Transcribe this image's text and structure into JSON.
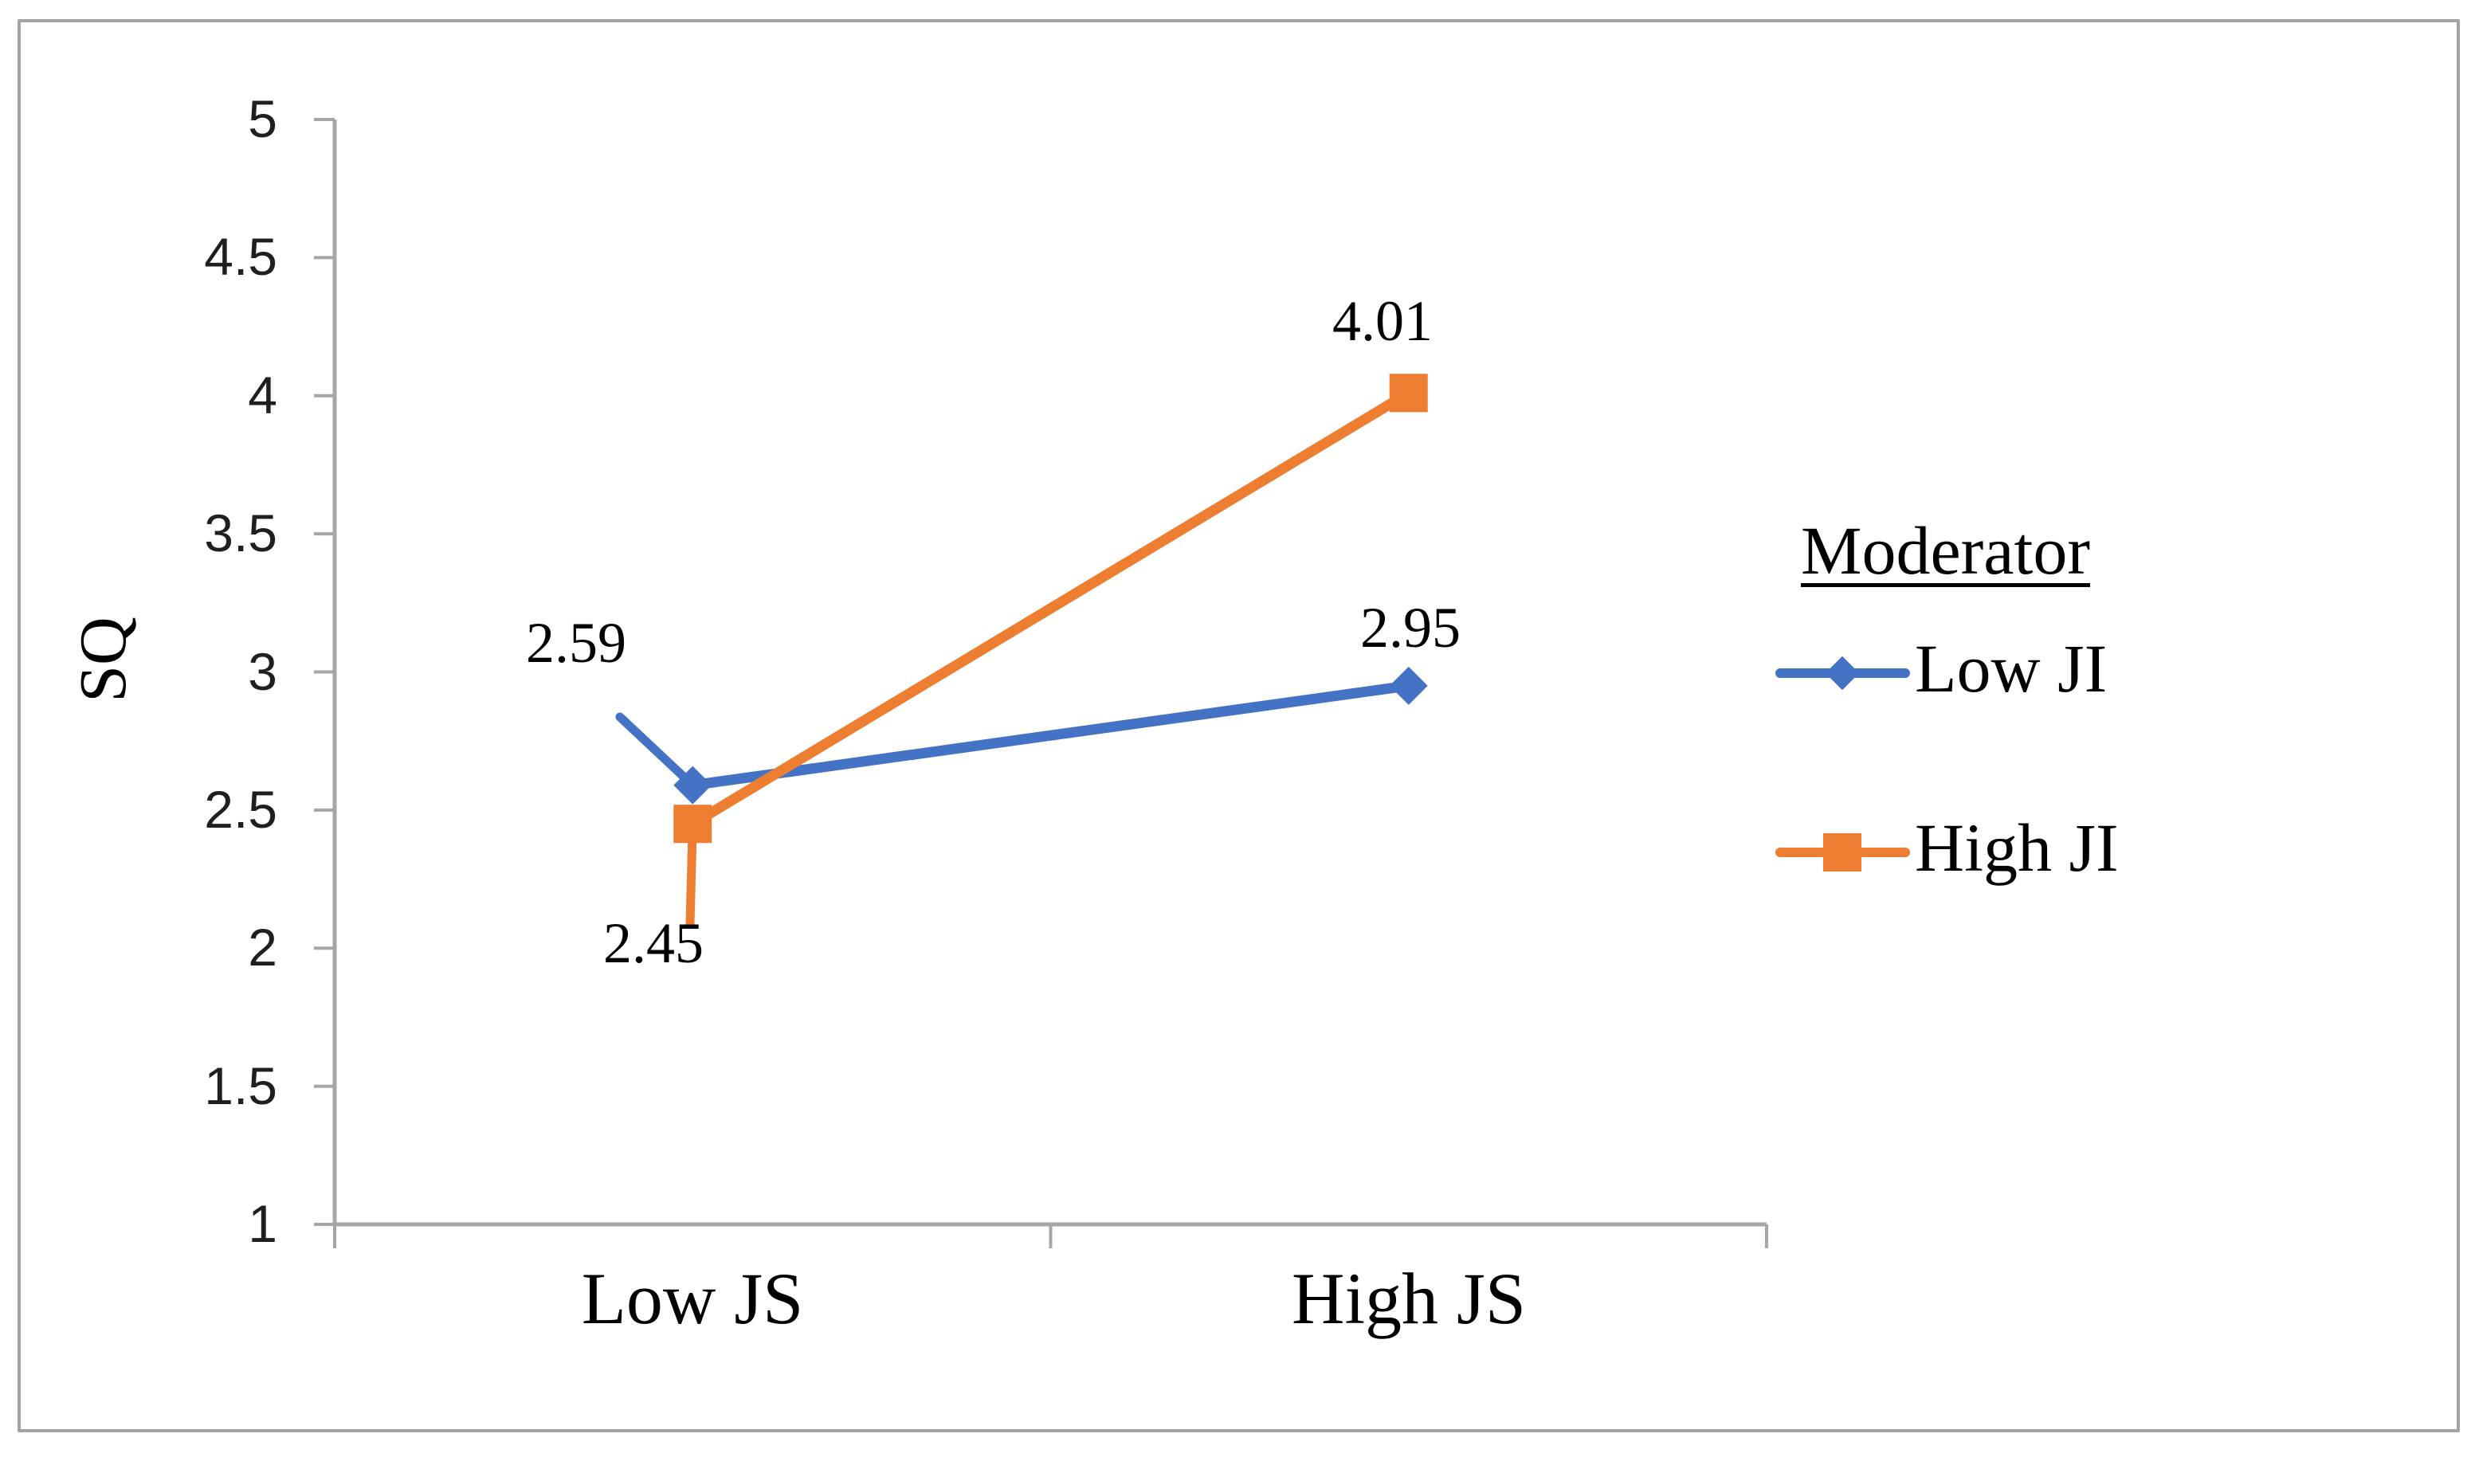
{
  "figure": {
    "background": "#ffffff",
    "border_color": "#a3a3a3"
  },
  "chart_data": {
    "type": "line",
    "title": "",
    "categories": [
      "Low JS",
      "High JS"
    ],
    "series": [
      {
        "name": "Low JI",
        "color": "#4472C4",
        "marker": "diamond",
        "values": [
          2.59,
          2.95
        ],
        "point_labels": [
          "2.59",
          "2.95"
        ]
      },
      {
        "name": "High JI",
        "color": "#ED7D31",
        "marker": "square",
        "values": [
          2.45,
          4.01
        ],
        "point_labels": [
          "2.45",
          "4.01"
        ]
      }
    ],
    "xlabel": "",
    "ylabel": "SQ",
    "ylim": [
      1,
      5
    ],
    "ytick_step": 0.5,
    "ytick_labels": [
      "1",
      "1.5",
      "2",
      "2.5",
      "3",
      "3.5",
      "4",
      "4.5",
      "5"
    ],
    "grid": false,
    "axis_color": "#A6A6A6",
    "tick_label_color": "#1f1f1f",
    "data_label_color": "#000000",
    "legend": {
      "title": "Moderator",
      "position": "right",
      "entries": [
        "Low JI",
        "High JI"
      ]
    }
  }
}
